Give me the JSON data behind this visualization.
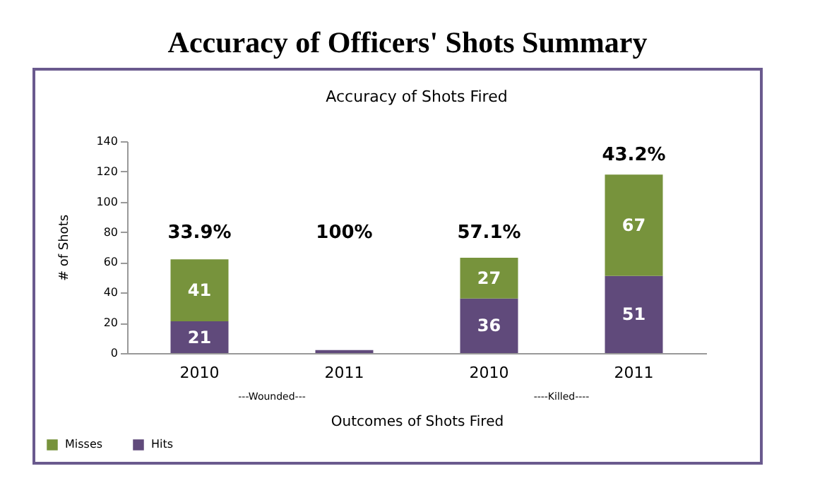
{
  "chart_data": {
    "type": "bar",
    "title": "Accuracy of Officers' Shots Summary",
    "subtitle": "Accuracy of Shots Fired",
    "xlabel": "Outcomes of Shots Fired",
    "ylabel": "# of Shots",
    "categories": [
      "2010",
      "2011",
      "2010",
      "2011"
    ],
    "stacked": true,
    "series": [
      {
        "name": "Hits",
        "color": "#604a7b",
        "values": [
          21,
          2,
          36,
          51
        ],
        "value_labels": [
          "21",
          null,
          "36",
          "51"
        ]
      },
      {
        "name": "Misses",
        "color": "#77933c",
        "values": [
          41,
          0,
          27,
          67
        ],
        "value_labels": [
          "41",
          null,
          "27",
          "67"
        ]
      }
    ],
    "ylim": [
      0,
      140
    ],
    "yticks": [
      0,
      20,
      40,
      60,
      80,
      100,
      120,
      140
    ],
    "legend": "bottom left",
    "annotations": [
      "33.9%",
      "100%",
      "57.1%",
      "43.2%",
      "---Wounded---",
      "----Killed----"
    ]
  }
}
